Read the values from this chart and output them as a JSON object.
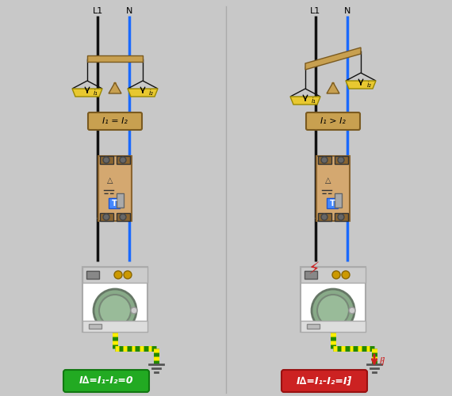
{
  "bg_color": "#c8c8c8",
  "wire_black": "#111111",
  "wire_blue": "#1a6aff",
  "wood_color": "#c8a050",
  "scale_pan_color": "#e8c830",
  "breaker_body": "#d4a870",
  "breaker_border": "#8b6530",
  "ground_color": "#555555",
  "green_label": "#22aa22",
  "red_label": "#cc2222",
  "left_label": "I∆=I₁-I₂=0",
  "right_label": "I∆=I₁-I₂=I⁆",
  "left_eq": "I₁ = I₂",
  "right_eq": "I₁ > I₂",
  "arrow_down_red": "#cc2222"
}
